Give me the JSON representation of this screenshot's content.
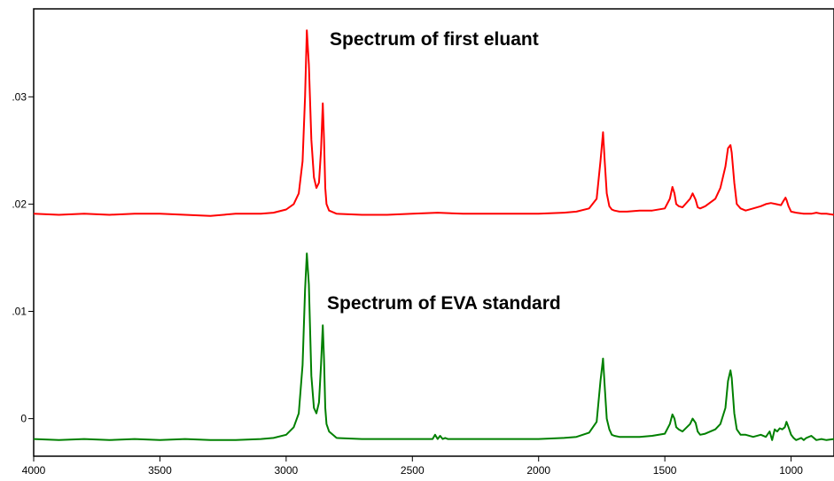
{
  "chart_data": {
    "type": "line",
    "title": "",
    "xlabel": "",
    "ylabel": "",
    "xlim": [
      4000,
      830
    ],
    "ylim": [
      -0.0035,
      0.0382
    ],
    "x_ticks": [
      4000,
      3500,
      3000,
      2500,
      2000,
      1500,
      1000
    ],
    "x_tick_labels": [
      "4000",
      "3500",
      "3000",
      "2500",
      "2000",
      "1500",
      "1000"
    ],
    "y_ticks": [
      0,
      0.01,
      0.02,
      0.03
    ],
    "y_tick_labels": [
      "0",
      ".01",
      ".02",
      ".03"
    ],
    "grid": false,
    "legend": "none",
    "annotations": [
      "Spectrum of first eluant",
      "Spectrum of EVA standard"
    ],
    "series": [
      {
        "color": "#ff0000",
        "x": [
          4000,
          3900,
          3800,
          3700,
          3600,
          3500,
          3400,
          3300,
          3200,
          3100,
          3050,
          3000,
          2970,
          2950,
          2935,
          2925,
          2918,
          2910,
          2900,
          2890,
          2880,
          2870,
          2862,
          2855,
          2850,
          2845,
          2840,
          2830,
          2800,
          2700,
          2600,
          2500,
          2400,
          2300,
          2200,
          2100,
          2000,
          1900,
          1850,
          1800,
          1770,
          1755,
          1745,
          1738,
          1730,
          1720,
          1710,
          1700,
          1680,
          1650,
          1600,
          1550,
          1500,
          1480,
          1470,
          1462,
          1455,
          1445,
          1430,
          1400,
          1390,
          1378,
          1370,
          1360,
          1340,
          1300,
          1280,
          1260,
          1250,
          1240,
          1235,
          1225,
          1215,
          1200,
          1180,
          1150,
          1120,
          1100,
          1080,
          1060,
          1040,
          1030,
          1022,
          1018,
          1010,
          1000,
          980,
          950,
          920,
          900,
          880,
          860,
          830
        ],
        "y": [
          0.0191,
          0.019,
          0.0191,
          0.019,
          0.0191,
          0.0191,
          0.019,
          0.0189,
          0.0191,
          0.0191,
          0.0192,
          0.0195,
          0.02,
          0.021,
          0.024,
          0.03,
          0.0362,
          0.033,
          0.026,
          0.0225,
          0.0215,
          0.022,
          0.025,
          0.0294,
          0.026,
          0.0215,
          0.02,
          0.0194,
          0.0191,
          0.019,
          0.019,
          0.0191,
          0.0192,
          0.0191,
          0.0191,
          0.0191,
          0.0191,
          0.0192,
          0.0193,
          0.0196,
          0.0205,
          0.024,
          0.0267,
          0.024,
          0.021,
          0.0198,
          0.0195,
          0.0194,
          0.0193,
          0.0193,
          0.0194,
          0.0194,
          0.0196,
          0.0205,
          0.0216,
          0.021,
          0.02,
          0.0198,
          0.0197,
          0.0205,
          0.021,
          0.0204,
          0.0197,
          0.0196,
          0.0198,
          0.0205,
          0.0215,
          0.0235,
          0.0252,
          0.0255,
          0.0248,
          0.022,
          0.02,
          0.0196,
          0.0194,
          0.0196,
          0.0198,
          0.02,
          0.0201,
          0.02,
          0.0199,
          0.0203,
          0.0206,
          0.0204,
          0.0198,
          0.0193,
          0.0192,
          0.0191,
          0.0191,
          0.0192,
          0.0191,
          0.0191,
          0.019
        ]
      },
      {
        "color": "#008000",
        "x": [
          4000,
          3900,
          3800,
          3700,
          3600,
          3500,
          3400,
          3300,
          3200,
          3100,
          3050,
          3000,
          2970,
          2950,
          2935,
          2925,
          2918,
          2910,
          2900,
          2890,
          2880,
          2870,
          2862,
          2855,
          2850,
          2845,
          2840,
          2830,
          2800,
          2700,
          2600,
          2500,
          2420,
          2410,
          2400,
          2390,
          2380,
          2370,
          2360,
          2300,
          2200,
          2100,
          2000,
          1900,
          1850,
          1800,
          1770,
          1755,
          1745,
          1738,
          1730,
          1720,
          1710,
          1700,
          1680,
          1650,
          1600,
          1550,
          1500,
          1480,
          1470,
          1462,
          1455,
          1445,
          1430,
          1400,
          1390,
          1378,
          1370,
          1360,
          1340,
          1300,
          1280,
          1260,
          1250,
          1240,
          1235,
          1225,
          1215,
          1200,
          1180,
          1150,
          1120,
          1100,
          1085,
          1075,
          1065,
          1055,
          1045,
          1035,
          1025,
          1018,
          1010,
          1000,
          990,
          980,
          960,
          950,
          940,
          920,
          900,
          880,
          860,
          830
        ],
        "y": [
          -0.0019,
          -0.002,
          -0.0019,
          -0.002,
          -0.0019,
          -0.002,
          -0.0019,
          -0.002,
          -0.002,
          -0.0019,
          -0.0018,
          -0.0015,
          -0.0008,
          0.0005,
          0.005,
          0.012,
          0.0154,
          0.0125,
          0.004,
          0.001,
          0.0005,
          0.0015,
          0.005,
          0.0087,
          0.0055,
          0.001,
          -0.0005,
          -0.0012,
          -0.0018,
          -0.0019,
          -0.0019,
          -0.0019,
          -0.0019,
          -0.0015,
          -0.0019,
          -0.0016,
          -0.0019,
          -0.0018,
          -0.0019,
          -0.0019,
          -0.0019,
          -0.0019,
          -0.0019,
          -0.0018,
          -0.0017,
          -0.0013,
          -0.0003,
          0.0035,
          0.0056,
          0.003,
          0.0,
          -0.001,
          -0.0015,
          -0.0016,
          -0.0017,
          -0.0017,
          -0.0017,
          -0.0016,
          -0.0014,
          -0.0005,
          0.0004,
          0.0,
          -0.0008,
          -0.001,
          -0.0012,
          -0.0005,
          0.0,
          -0.0004,
          -0.0012,
          -0.0015,
          -0.0014,
          -0.001,
          -0.0005,
          0.001,
          0.0035,
          0.0045,
          0.0038,
          0.0005,
          -0.001,
          -0.0015,
          -0.0015,
          -0.0017,
          -0.0015,
          -0.0017,
          -0.0012,
          -0.002,
          -0.001,
          -0.0012,
          -0.0009,
          -0.001,
          -0.0008,
          -0.0003,
          -0.0008,
          -0.0015,
          -0.0018,
          -0.002,
          -0.0018,
          -0.002,
          -0.0018,
          -0.0016,
          -0.002,
          -0.0019,
          -0.002,
          -0.0019
        ]
      }
    ]
  }
}
